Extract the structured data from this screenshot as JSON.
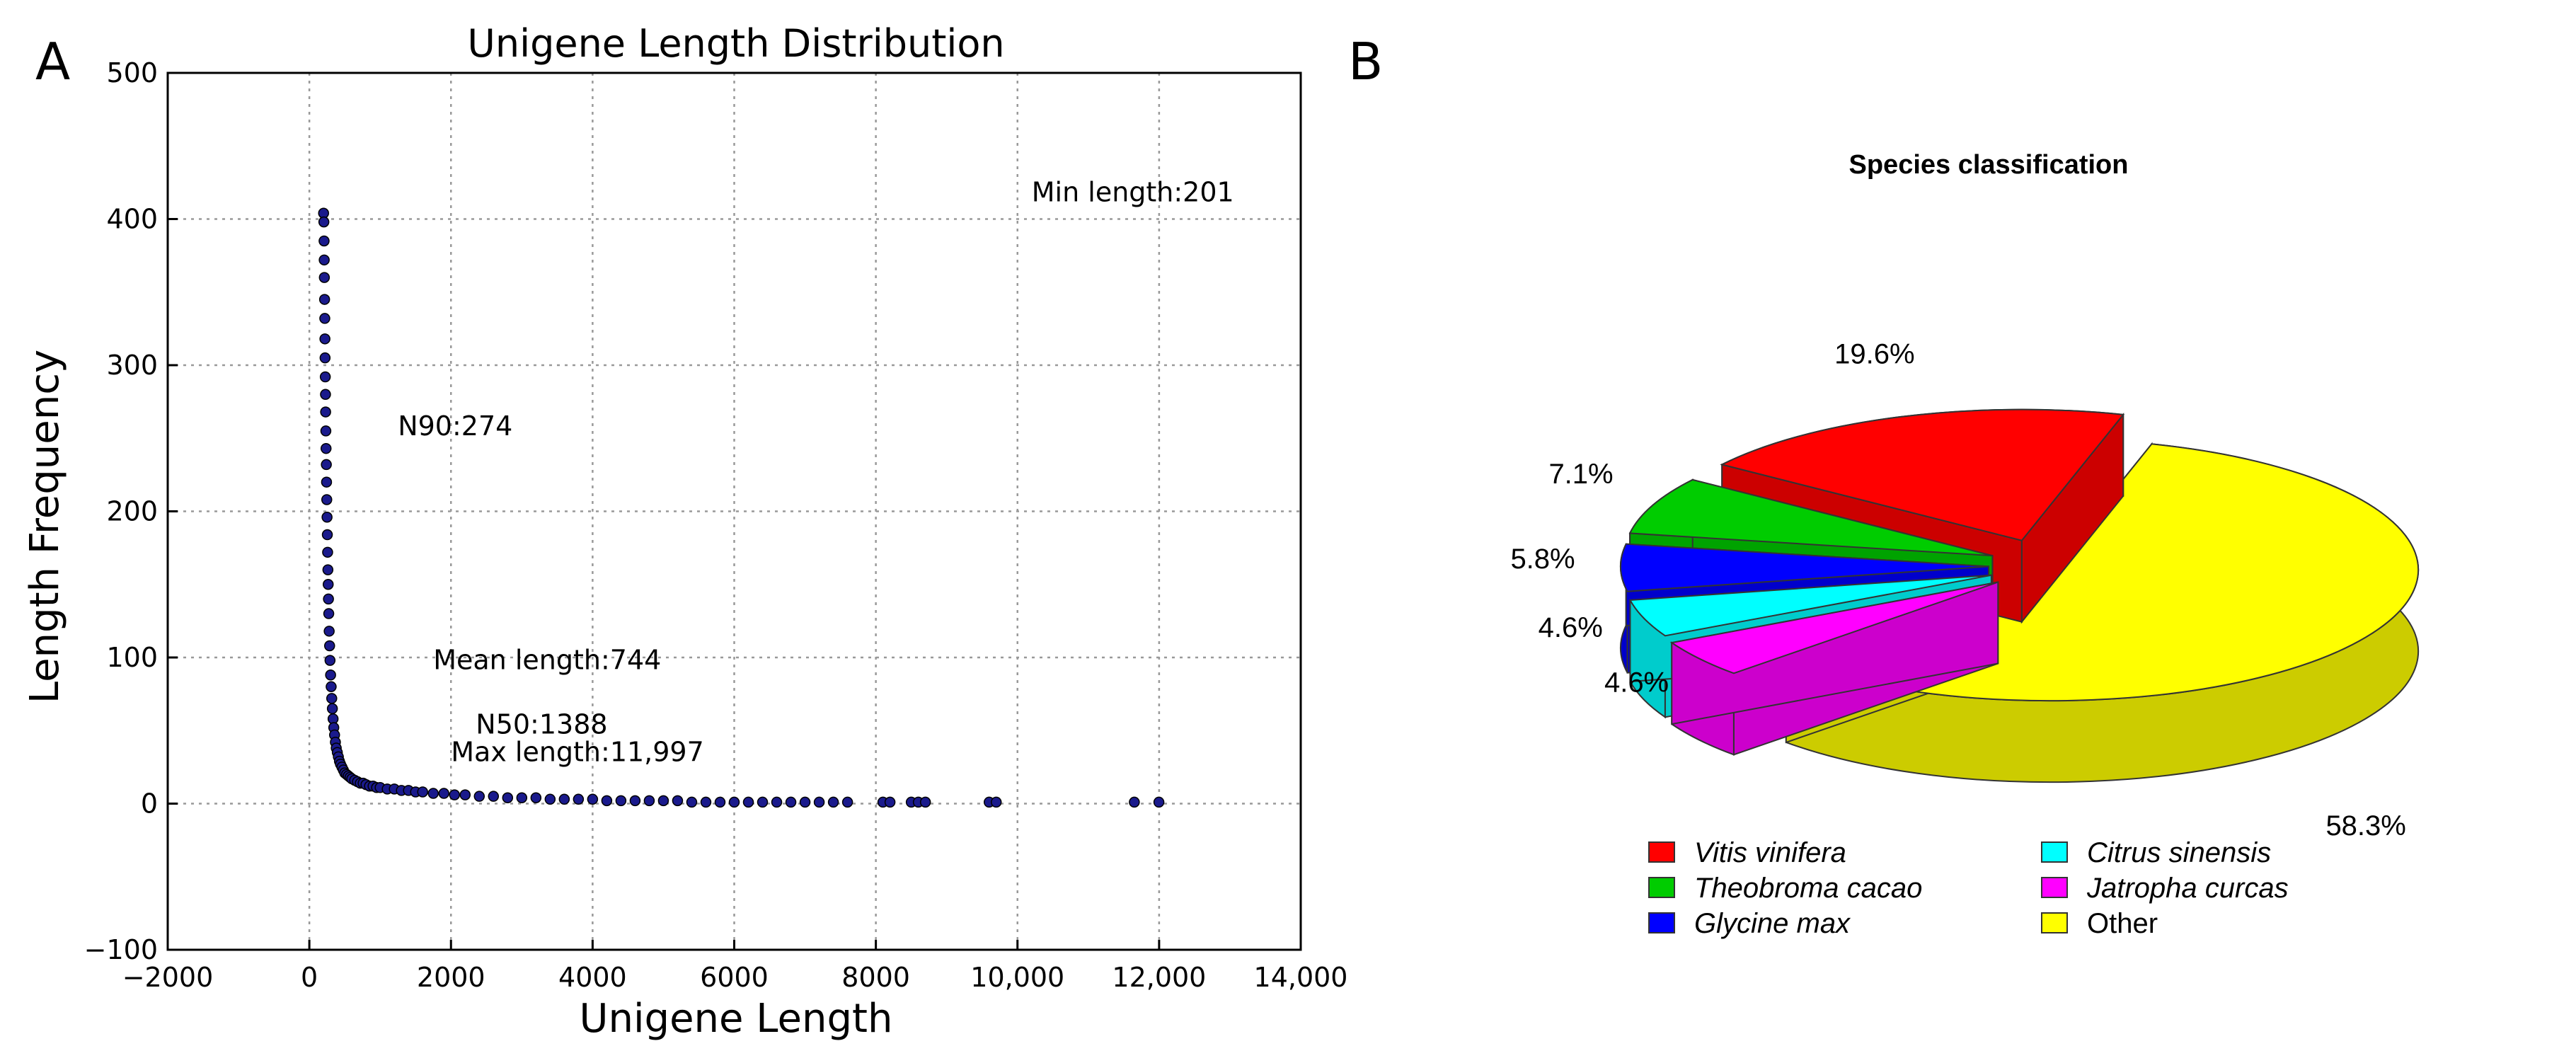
{
  "chart_data": [
    {
      "panel_label": "A",
      "type": "scatter",
      "title": "Unigene Length Distribution",
      "xlabel": "Unigene Length",
      "ylabel": "Length Frequency",
      "xlim": [
        -2000,
        14000
      ],
      "ylim": [
        -100,
        500
      ],
      "grid": true,
      "x_tick_labels": [
        "−2000",
        "0",
        "2000",
        "4000",
        "6000",
        "8000",
        "10,000",
        "12,000",
        "14,000"
      ],
      "x_tick_values": [
        -2000,
        0,
        2000,
        4000,
        6000,
        8000,
        10000,
        12000,
        14000
      ],
      "y_tick_labels": [
        "−100",
        "0",
        "100",
        "200",
        "300",
        "400",
        "500"
      ],
      "y_tick_values": [
        -100,
        0,
        100,
        200,
        300,
        400,
        500
      ],
      "annotations": [
        {
          "text": "Min length:201",
          "x": 10200,
          "y": 412
        },
        {
          "text": "N90:274",
          "x": 1250,
          "y": 252
        },
        {
          "text": "Mean length:744",
          "x": 1750,
          "y": 92
        },
        {
          "text": "N50:1388",
          "x": 2350,
          "y": 48
        },
        {
          "text": "Max length:11,997",
          "x": 2000,
          "y": 29
        }
      ],
      "points": {
        "x": [
          201,
          205,
          208,
          210,
          212,
          215,
          218,
          220,
          222,
          225,
          228,
          230,
          233,
          236,
          240,
          243,
          246,
          250,
          254,
          258,
          262,
          266,
          270,
          274,
          280,
          286,
          292,
          300,
          308,
          316,
          325,
          335,
          345,
          356,
          368,
          380,
          395,
          410,
          425,
          440,
          460,
          480,
          500,
          525,
          550,
          575,
          600,
          640,
          680,
          720,
          760,
          800,
          850,
          900,
          950,
          1000,
          1100,
          1200,
          1300,
          1400,
          1500,
          1600,
          1750,
          1900,
          2050,
          2200,
          2400,
          2600,
          2800,
          3000,
          3200,
          3400,
          3600,
          3800,
          4000,
          4200,
          4400,
          4600,
          4800,
          5000,
          5200,
          5400,
          5600,
          5800,
          6000,
          6200,
          6400,
          6600,
          6800,
          7000,
          7200,
          7400,
          7600,
          8100,
          8200,
          8500,
          8600,
          8700,
          9600,
          9700,
          11650,
          11997
        ],
        "y": [
          404,
          398,
          385,
          372,
          360,
          345,
          332,
          318,
          305,
          292,
          280,
          268,
          255,
          243,
          232,
          220,
          208,
          196,
          184,
          172,
          160,
          150,
          140,
          130,
          118,
          108,
          98,
          88,
          80,
          72,
          65,
          58,
          52,
          47,
          42,
          38,
          35,
          32,
          29,
          27,
          25,
          23,
          21,
          20,
          19,
          18,
          17,
          16,
          15,
          14,
          14,
          13,
          12,
          12,
          11,
          11,
          10,
          10,
          9,
          9,
          8,
          8,
          7,
          7,
          6,
          6,
          5,
          5,
          4,
          4,
          4,
          3,
          3,
          3,
          3,
          2,
          2,
          2,
          2,
          2,
          2,
          1,
          1,
          1,
          1,
          1,
          1,
          1,
          1,
          1,
          1,
          1,
          1,
          1,
          1,
          1,
          1,
          1,
          1,
          1,
          1,
          1
        ]
      }
    },
    {
      "panel_label": "B",
      "type": "pie",
      "title": "Species classification",
      "slices": [
        {
          "label": "Vitis vinifera",
          "value": 19.6,
          "value_label": "19.6%",
          "color": "#ff0000"
        },
        {
          "label": "Theobroma cacao",
          "value": 7.1,
          "value_label": "7.1%",
          "color": "#00cc00"
        },
        {
          "label": "Glycine max",
          "value": 5.8,
          "value_label": "5.8%",
          "color": "#0000ff"
        },
        {
          "label": "Citrus sinensis",
          "value": 4.6,
          "value_label": "4.6%",
          "color": "#00ffff"
        },
        {
          "label": "Jatropha curcas",
          "value": 4.6,
          "value_label": "4.6%",
          "color": "#ff00ff"
        },
        {
          "label": "Other",
          "value": 58.3,
          "value_label": "58.3%",
          "color": "#ffff00"
        }
      ],
      "legend_placement": "bottom"
    }
  ]
}
